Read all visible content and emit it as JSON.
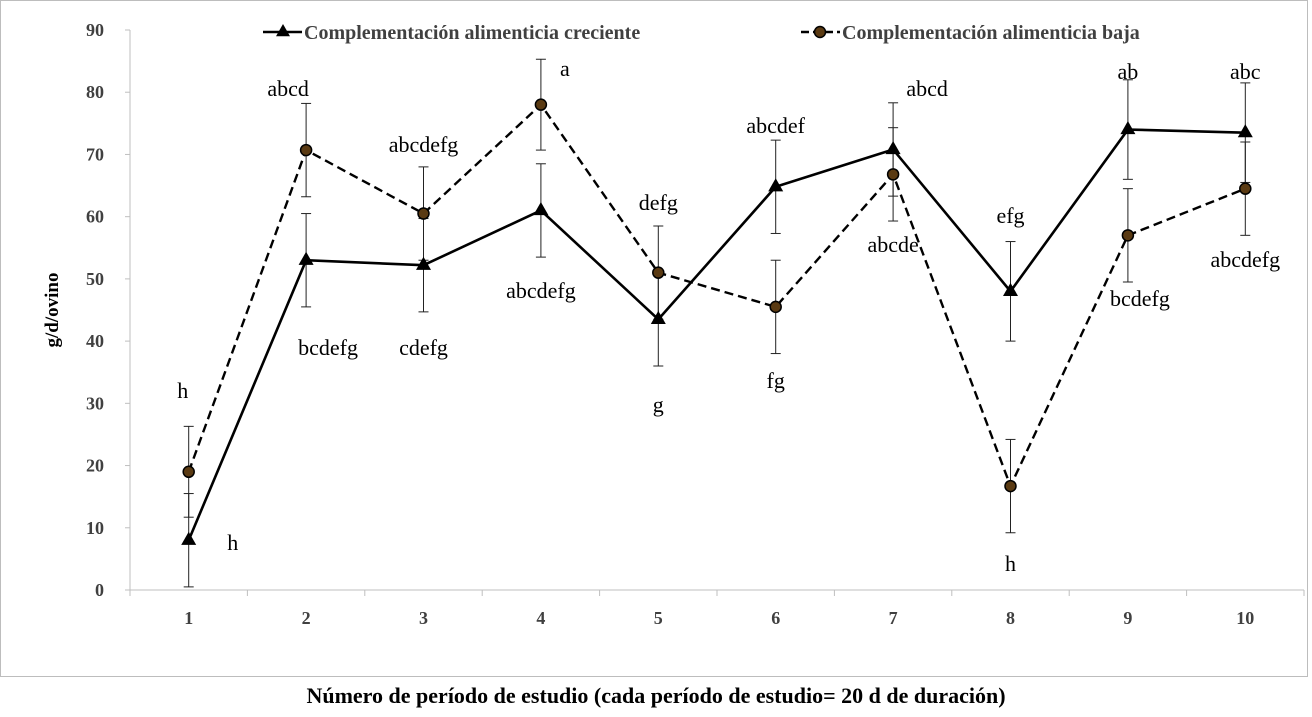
{
  "chart_data": {
    "type": "line",
    "title": "",
    "xlabel": "Número de período de estudio (cada período de estudio= 20 d de duración)",
    "ylabel": "g/d/ovino",
    "ylim": [
      0,
      90
    ],
    "yticks": [
      0,
      10,
      20,
      30,
      40,
      50,
      60,
      70,
      80,
      90
    ],
    "categories": [
      "1",
      "2",
      "3",
      "4",
      "5",
      "6",
      "7",
      "8",
      "9",
      "10"
    ],
    "grid": false,
    "legend_position": "top",
    "series": [
      {
        "name": "Complementación alimenticia creciente",
        "style": "solid",
        "marker": "triangle",
        "color": "#000000",
        "values": [
          8,
          53,
          52.2,
          61,
          43.5,
          64.8,
          70.8,
          48,
          74,
          73.5
        ],
        "error": [
          7.5,
          7.5,
          7.5,
          7.5,
          7.5,
          7.5,
          7.5,
          8,
          8,
          8
        ],
        "labels": [
          "h",
          "bcdefg",
          "cdefg",
          "abcdefg",
          "g",
          "abcdef",
          "abcd",
          "efg",
          "ab",
          "abc"
        ]
      },
      {
        "name": "Complementación alimenticia baja",
        "style": "dashed",
        "marker": "circle",
        "color": "#000000",
        "values": [
          19,
          70.7,
          60.5,
          78,
          51,
          45.5,
          66.8,
          16.7,
          57,
          64.5
        ],
        "error": [
          7.3,
          7.5,
          7.5,
          7.3,
          7.5,
          7.5,
          7.5,
          7.5,
          7.5,
          7.5
        ],
        "labels": [
          "h",
          "abcd",
          "abcdefg",
          "a",
          "defg",
          "fg",
          "abcde",
          "h",
          "bcdefg",
          "abcdefg"
        ]
      }
    ]
  }
}
